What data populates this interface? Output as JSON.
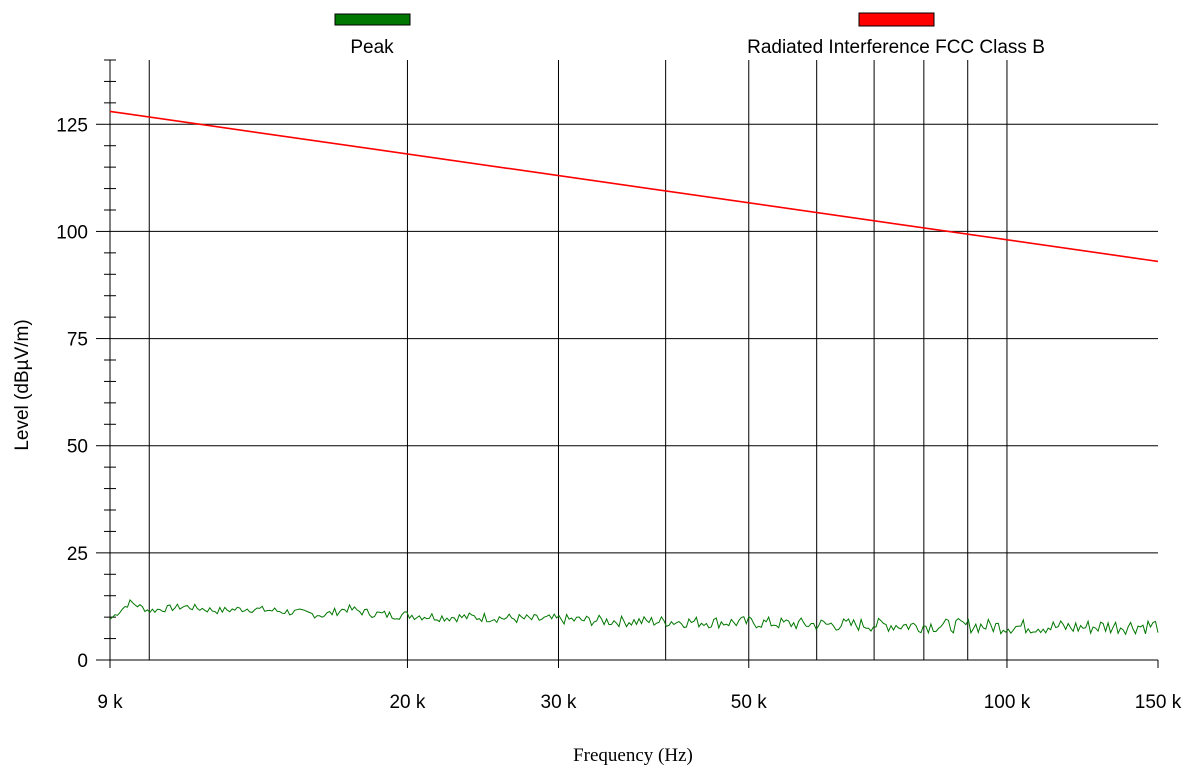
{
  "chart_data": {
    "type": "line",
    "title": "",
    "xlabel": "Frequency (Hz)",
    "ylabel": "Level (dBµV/m)",
    "x_scale": "log",
    "xlim": [
      9000,
      150000
    ],
    "ylim": [
      0,
      140
    ],
    "x_ticks": [
      {
        "value": 9000,
        "label": "9 k"
      },
      {
        "value": 20000,
        "label": "20 k"
      },
      {
        "value": 30000,
        "label": "30 k"
      },
      {
        "value": 50000,
        "label": "50 k"
      },
      {
        "value": 100000,
        "label": "100 k"
      },
      {
        "value": 150000,
        "label": "150 k"
      }
    ],
    "x_gridlines": [
      10000,
      20000,
      30000,
      40000,
      50000,
      60000,
      70000,
      80000,
      90000,
      100000
    ],
    "y_ticks": [
      0,
      25,
      50,
      75,
      100,
      125
    ],
    "y_minor_step": 5,
    "grid": true,
    "legend_position": "top",
    "series": [
      {
        "name": "Peak",
        "color": "#007700",
        "x": [
          9000,
          9500,
          10000,
          11000,
          12000,
          13000,
          14000,
          15000,
          16000,
          17000,
          18000,
          19000,
          20000,
          22000,
          24000,
          26000,
          28000,
          30000,
          33000,
          36000,
          40000,
          45000,
          50000,
          55000,
          60000,
          70000,
          80000,
          90000,
          100000,
          110000,
          120000,
          130000,
          140000,
          150000
        ],
        "y": [
          9.5,
          13.5,
          11.5,
          12.5,
          11.5,
          12,
          11.5,
          11,
          10.5,
          12,
          11,
          10.5,
          10.5,
          10,
          10,
          9.8,
          9.5,
          9.5,
          9.2,
          9,
          9,
          8.8,
          8.8,
          8.5,
          8.3,
          8.2,
          8,
          8,
          7.8,
          7.8,
          7.6,
          7.8,
          7.9,
          8
        ],
        "noise": 1.2
      },
      {
        "name": "Radiated Interference FCC Class B",
        "color": "#ff0000",
        "x": [
          9000,
          150000
        ],
        "y": [
          128,
          93
        ]
      }
    ]
  }
}
